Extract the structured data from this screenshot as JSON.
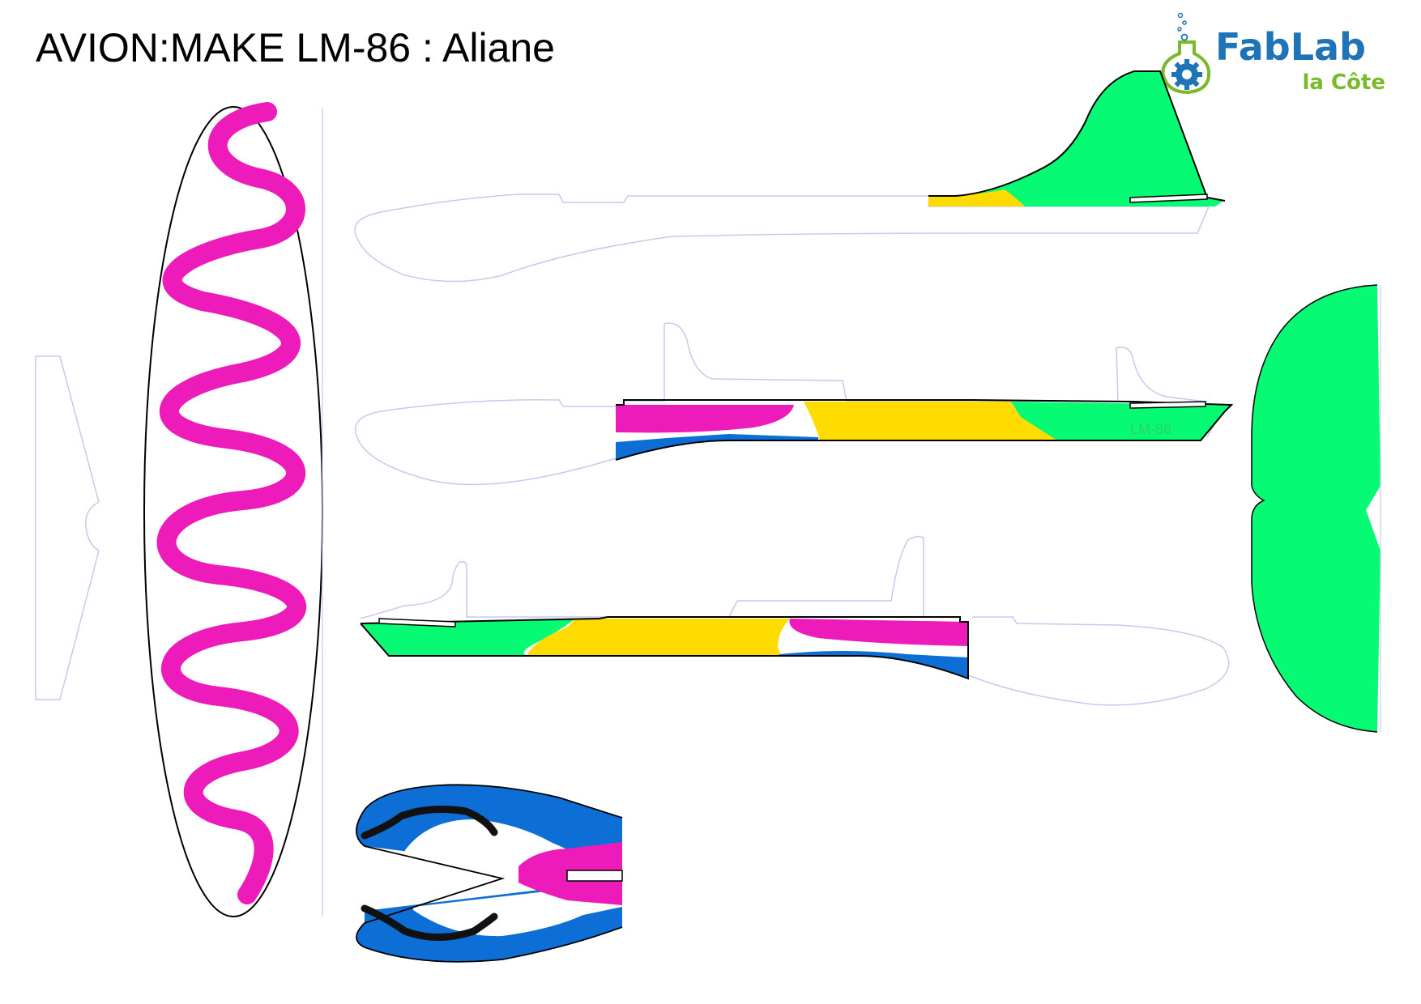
{
  "title": "AVION:MAKE LM-86 : Aliane",
  "logo": {
    "name": "FabLab",
    "sub": "la Côte",
    "colors": {
      "blue": "#1f73b7",
      "green": "#7ab929"
    }
  },
  "parts": {
    "fuselage_label": "LM-86"
  },
  "colors": {
    "pink": "#ee1bbb",
    "green": "#06fa74",
    "yellow": "#ffdc00",
    "blue": "#0d6fd6",
    "black": "#000000",
    "outline": "#c8c8ee"
  }
}
